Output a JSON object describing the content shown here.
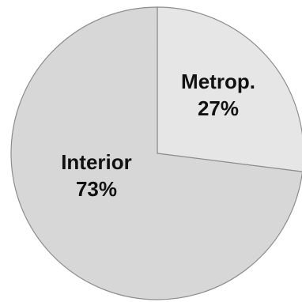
{
  "chart_data": {
    "type": "pie",
    "title": "",
    "slices": [
      {
        "label": "Metrop.",
        "value": 27,
        "value_label": "27%",
        "color": "#e6e6e6"
      },
      {
        "label": "Interior",
        "value": 73,
        "value_label": "73%",
        "color": "#d7d7d7"
      }
    ],
    "start_angle_deg": 0,
    "direction": "clockwise",
    "legend": "none"
  }
}
